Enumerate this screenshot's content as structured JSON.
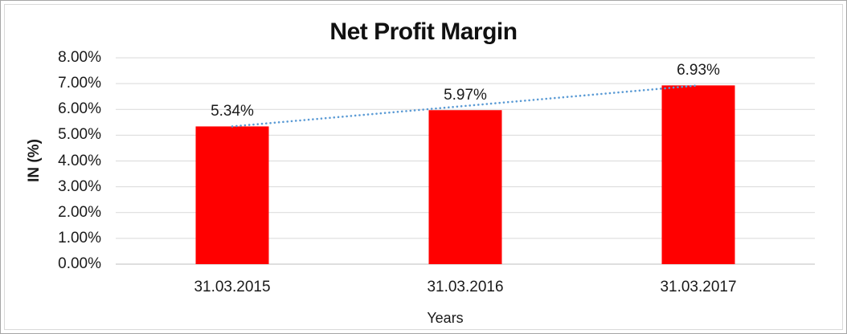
{
  "chart_data": {
    "type": "bar",
    "title": "Net Profit Margin",
    "categories": [
      "31.03.2015",
      "31.03.2016",
      "31.03.2017"
    ],
    "values": [
      5.34,
      5.97,
      6.93
    ],
    "data_labels": [
      "5.34%",
      "5.97%",
      "6.93%"
    ],
    "xlabel": "Years",
    "ylabel": "IN (%)",
    "ylim": [
      0,
      8
    ],
    "ytick_step": 1,
    "ytick_labels": [
      "0.00%",
      "1.00%",
      "2.00%",
      "3.00%",
      "4.00%",
      "5.00%",
      "6.00%",
      "7.00%",
      "8.00%"
    ],
    "grid": true,
    "legend": "none",
    "colors": {
      "bar": "#FF0000",
      "trendline": "#5B9BD5",
      "gridline": "#D9D9D9",
      "axis_line": "#BFBFBF",
      "text": "#1A1A1A"
    },
    "trendline": {
      "type": "linear",
      "style": "dotted",
      "from_point": 1,
      "to_point": 3
    }
  }
}
